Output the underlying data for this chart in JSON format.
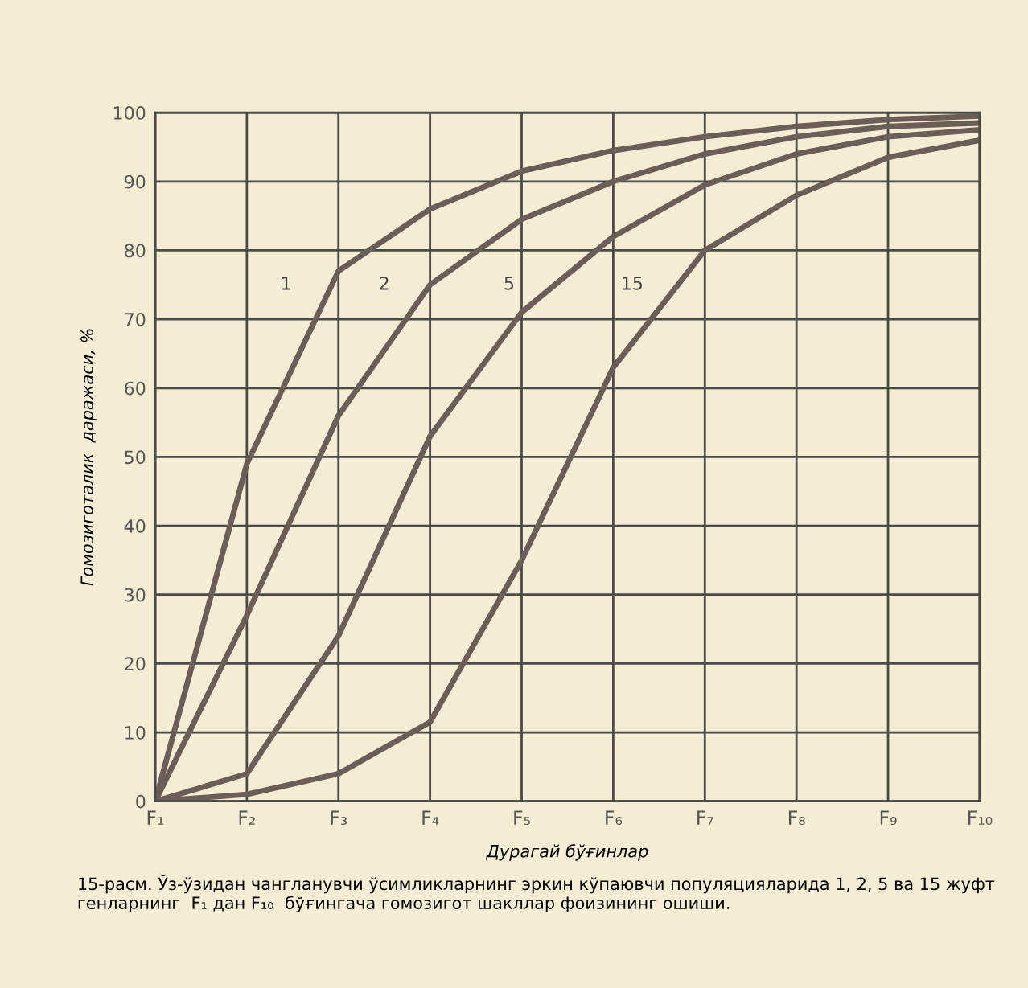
{
  "chart_data": {
    "type": "line",
    "xlabel": "Дурагай бўғинлар",
    "ylabel": "Гомозиготалик  даражаси, %",
    "categories": [
      "F₁",
      "F₂",
      "F₃",
      "F₄",
      "F₅",
      "F₆",
      "F₇",
      "F₈",
      "F₉",
      "F₁₀"
    ],
    "ylim": [
      0,
      100
    ],
    "yticks": [
      0,
      10,
      20,
      30,
      40,
      50,
      60,
      70,
      80,
      90,
      100
    ],
    "grid": true,
    "line_style": "solid",
    "marker": "none",
    "series": [
      {
        "name": "1",
        "color": "#6b5e58",
        "values": [
          0,
          49,
          77,
          86,
          91.5,
          94.5,
          96.5,
          98,
          99,
          99.5
        ]
      },
      {
        "name": "2",
        "color": "#6b5e58",
        "values": [
          0,
          27,
          56,
          75,
          84.5,
          90,
          94,
          96.5,
          98,
          98.5
        ]
      },
      {
        "name": "5",
        "color": "#6b5e58",
        "values": [
          0,
          4,
          24,
          53,
          71,
          82,
          89.5,
          94,
          96.5,
          97.5
        ]
      },
      {
        "name": "15",
        "color": "#6b5e58",
        "values": [
          0,
          1,
          4,
          11.5,
          35,
          63,
          80,
          88,
          93.5,
          96
        ]
      }
    ],
    "annotations": [
      "15-расм. Ўз-ўзидан чангланувчи ўсимликларнинг эркин кўпаювчи популяцияларида 1, 2, 5 ва 15 жуфт генларнинг  F₁ дан F₁₀  бўғингача гомозигот шакллар фоизининг ошиши."
    ]
  }
}
